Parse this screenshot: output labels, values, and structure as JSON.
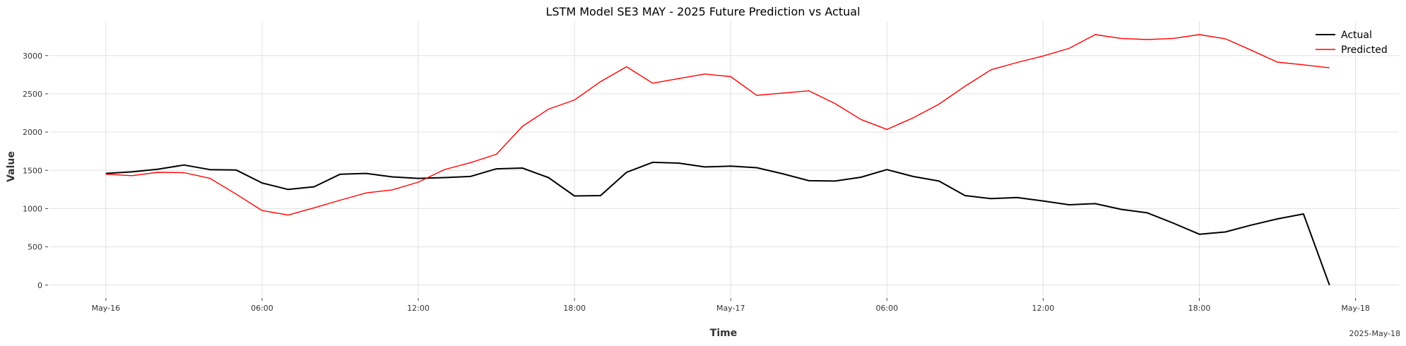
{
  "chart_data": {
    "type": "line",
    "title": "LSTM Model SE3 MAY - 2025 Future Prediction vs Actual",
    "xlabel": "Time",
    "ylabel": "Value",
    "x_start": "2025-05-16T00:00",
    "x_step_hours": 1,
    "x_range": [
      "2025-05-15T21:50",
      "2025-05-18T01:40"
    ],
    "ylim": [
      -150,
      3450
    ],
    "y_ticks": [
      0,
      500,
      1000,
      1500,
      2000,
      2500,
      3000
    ],
    "x_ticks": [
      {
        "t": "2025-05-16T00:00",
        "label": "May-16"
      },
      {
        "t": "2025-05-16T06:00",
        "label": "06:00"
      },
      {
        "t": "2025-05-16T12:00",
        "label": "12:00"
      },
      {
        "t": "2025-05-16T18:00",
        "label": "18:00"
      },
      {
        "t": "2025-05-17T00:00",
        "label": "May-17"
      },
      {
        "t": "2025-05-17T06:00",
        "label": "06:00"
      },
      {
        "t": "2025-05-17T12:00",
        "label": "12:00"
      },
      {
        "t": "2025-05-17T18:00",
        "label": "18:00"
      },
      {
        "t": "2025-05-18T00:00",
        "label": "May-18"
      }
    ],
    "x_offset_label": "2025-May-18",
    "grid": true,
    "legend_position": "top-right",
    "series": [
      {
        "name": "Actual",
        "color": "#000000",
        "values": [
          1460,
          1480,
          1515,
          1570,
          1510,
          1505,
          1335,
          1250,
          1285,
          1450,
          1460,
          1415,
          1395,
          1405,
          1420,
          1520,
          1530,
          1405,
          1165,
          1170,
          1475,
          1605,
          1595,
          1545,
          1555,
          1535,
          1455,
          1365,
          1360,
          1410,
          1510,
          1420,
          1360,
          1170,
          1130,
          1145,
          1100,
          1050,
          1065,
          990,
          945,
          810,
          665,
          695,
          785,
          865,
          930,
          0
        ]
      },
      {
        "name": "Predicted",
        "color": "#ff0000",
        "values": [
          1450,
          1430,
          1475,
          1470,
          1395,
          1190,
          975,
          915,
          1010,
          1110,
          1205,
          1245,
          1345,
          1510,
          1600,
          1710,
          2075,
          2300,
          2420,
          2660,
          2855,
          2640,
          2700,
          2760,
          2725,
          2480,
          2510,
          2540,
          2375,
          2165,
          2035,
          2185,
          2365,
          2600,
          2815,
          2910,
          2995,
          3095,
          3275,
          3225,
          3210,
          3225,
          3275,
          3220,
          3070,
          2915,
          2880,
          2840
        ]
      }
    ]
  }
}
